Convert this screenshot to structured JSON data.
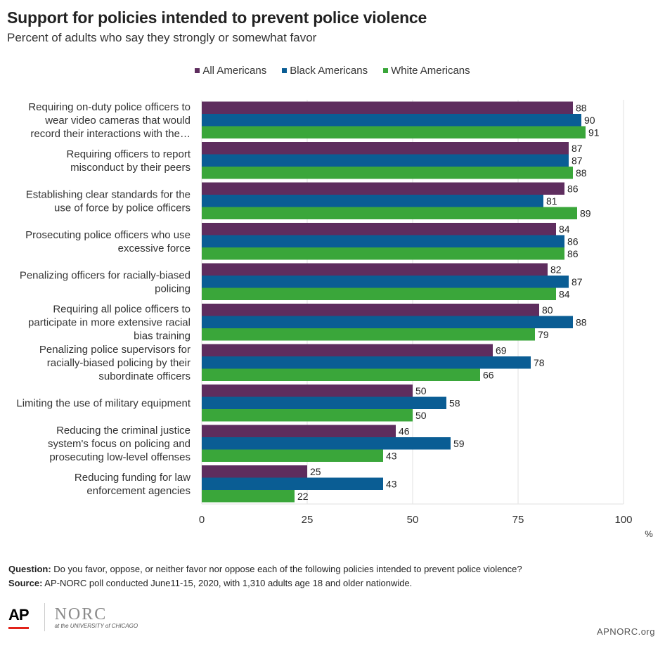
{
  "title": "Support for policies intended to prevent police violence",
  "subtitle": "Percent of adults who say they strongly or somewhat favor",
  "footer": {
    "question_label": "Question:",
    "question_text": " Do you favor, oppose, or neither favor nor oppose each of the following policies  intended to prevent police violence?",
    "source_label": "Source:",
    "source_text": " AP-NORC poll conducted June11-15, 2020, with 1,310 adults age 18 and older nationwide."
  },
  "logos": {
    "ap": "AP",
    "norc": "NORC",
    "norc_sub": "at the UNIVERSITY of CHICAGO",
    "site": "APNORC.org"
  },
  "colors": {
    "all": "#5e2d5e",
    "black": "#0a5d94",
    "white": "#3aa63a",
    "grid": "#e2e2e2"
  },
  "chart_data": {
    "type": "bar",
    "orientation": "horizontal",
    "title": "Support for policies intended to prevent police violence",
    "subtitle": "Percent of adults who say they strongly or somewhat favor",
    "xlabel": "%",
    "xlim": [
      0,
      100
    ],
    "xticks": [
      0,
      25,
      50,
      75,
      100
    ],
    "legend_position": "top-center",
    "categories": [
      [
        "Requiring on-duty police officers to",
        "wear video cameras that would",
        "record their interactions with the…"
      ],
      [
        "Requiring officers to report",
        "misconduct by their peers"
      ],
      [
        "Establishing clear standards for the",
        "use of force by police officers"
      ],
      [
        "Prosecuting police officers who use",
        "excessive force"
      ],
      [
        "Penalizing officers for racially-biased",
        "policing"
      ],
      [
        "Requiring all police officers to",
        "participate in more extensive racial",
        "bias training"
      ],
      [
        "Penalizing police supervisors for",
        "racially-biased policing by their",
        "subordinate officers"
      ],
      [
        "Limiting the use of military equipment"
      ],
      [
        "Reducing the criminal justice",
        "system's focus on policing and",
        "prosecuting low-level offenses"
      ],
      [
        "Reducing funding for law",
        "enforcement agencies"
      ]
    ],
    "series": [
      {
        "name": "All Americans",
        "color": "#5e2d5e",
        "values": [
          88,
          87,
          86,
          84,
          82,
          80,
          69,
          50,
          46,
          25
        ]
      },
      {
        "name": "Black Americans",
        "color": "#0a5d94",
        "values": [
          90,
          87,
          81,
          86,
          87,
          88,
          78,
          58,
          59,
          43
        ]
      },
      {
        "name": "White Americans",
        "color": "#3aa63a",
        "values": [
          91,
          88,
          89,
          86,
          84,
          79,
          66,
          50,
          43,
          22
        ]
      }
    ]
  }
}
